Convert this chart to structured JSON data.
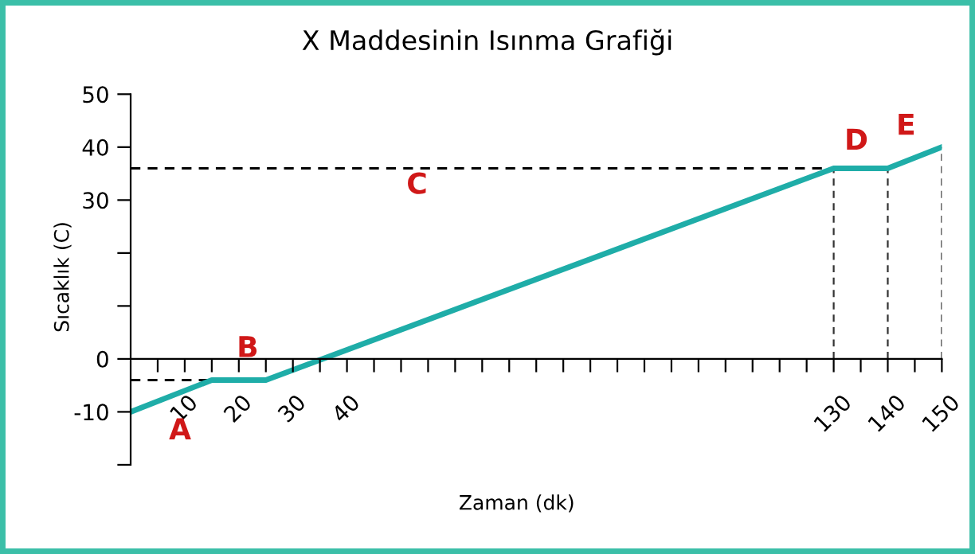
{
  "chart_data": {
    "type": "line",
    "title": "X Maddesinin Isınma Grafiği",
    "xlabel": "Zaman (dk)",
    "ylabel": "Sıcaklık (C)",
    "x": [
      0,
      15,
      25,
      130,
      140,
      150
    ],
    "series": [
      {
        "color": "#1fada8",
        "values": [
          -10,
          -4,
          -4,
          36,
          36,
          40
        ]
      }
    ],
    "xlim": [
      0,
      150
    ],
    "xticks": [
      {
        "value": 5,
        "label": null
      },
      {
        "value": 10,
        "label": "10"
      },
      {
        "value": 15,
        "label": null
      },
      {
        "value": 20,
        "label": "20"
      },
      {
        "value": 25,
        "label": null
      },
      {
        "value": 30,
        "label": "30"
      },
      {
        "value": 35,
        "label": null
      },
      {
        "value": 40,
        "label": "40"
      },
      {
        "value": 45,
        "label": null
      },
      {
        "value": 50,
        "label": null
      },
      {
        "value": 55,
        "label": null
      },
      {
        "value": 60,
        "label": null
      },
      {
        "value": 65,
        "label": null
      },
      {
        "value": 70,
        "label": null
      },
      {
        "value": 75,
        "label": null
      },
      {
        "value": 80,
        "label": null
      },
      {
        "value": 85,
        "label": null
      },
      {
        "value": 90,
        "label": null
      },
      {
        "value": 95,
        "label": null
      },
      {
        "value": 100,
        "label": null
      },
      {
        "value": 105,
        "label": null
      },
      {
        "value": 110,
        "label": null
      },
      {
        "value": 115,
        "label": null
      },
      {
        "value": 120,
        "label": null
      },
      {
        "value": 125,
        "label": null
      },
      {
        "value": 130,
        "label": "130"
      },
      {
        "value": 135,
        "label": null
      },
      {
        "value": 140,
        "label": "140"
      },
      {
        "value": 145,
        "label": null
      },
      {
        "value": 150,
        "label": "150"
      }
    ],
    "ylim": [
      -20,
      50
    ],
    "yticks": [
      {
        "value": -20,
        "label": null
      },
      -10,
      0,
      {
        "value": 10,
        "label": null
      },
      {
        "value": 20,
        "label": null
      },
      30,
      40,
      50
    ],
    "ref_lines": [
      {
        "axis": "y",
        "value": -4,
        "color": "#000000",
        "line_style": "dashed"
      },
      {
        "axis": "y",
        "value": 36,
        "color": "#000000",
        "line_style": "dashed"
      },
      {
        "axis": "x",
        "value": 130,
        "color": "#333333",
        "line_style": "dashed"
      },
      {
        "axis": "x",
        "value": 140,
        "color": "#333333",
        "line_style": "dashed"
      },
      {
        "axis": "x",
        "value": 150,
        "color": "#333333",
        "line_style": "dashed"
      }
    ],
    "annotations": [
      "A",
      "B",
      "C",
      "D",
      "E"
    ],
    "grid": false,
    "legend": false,
    "marker": "none",
    "line_style": "solid"
  }
}
